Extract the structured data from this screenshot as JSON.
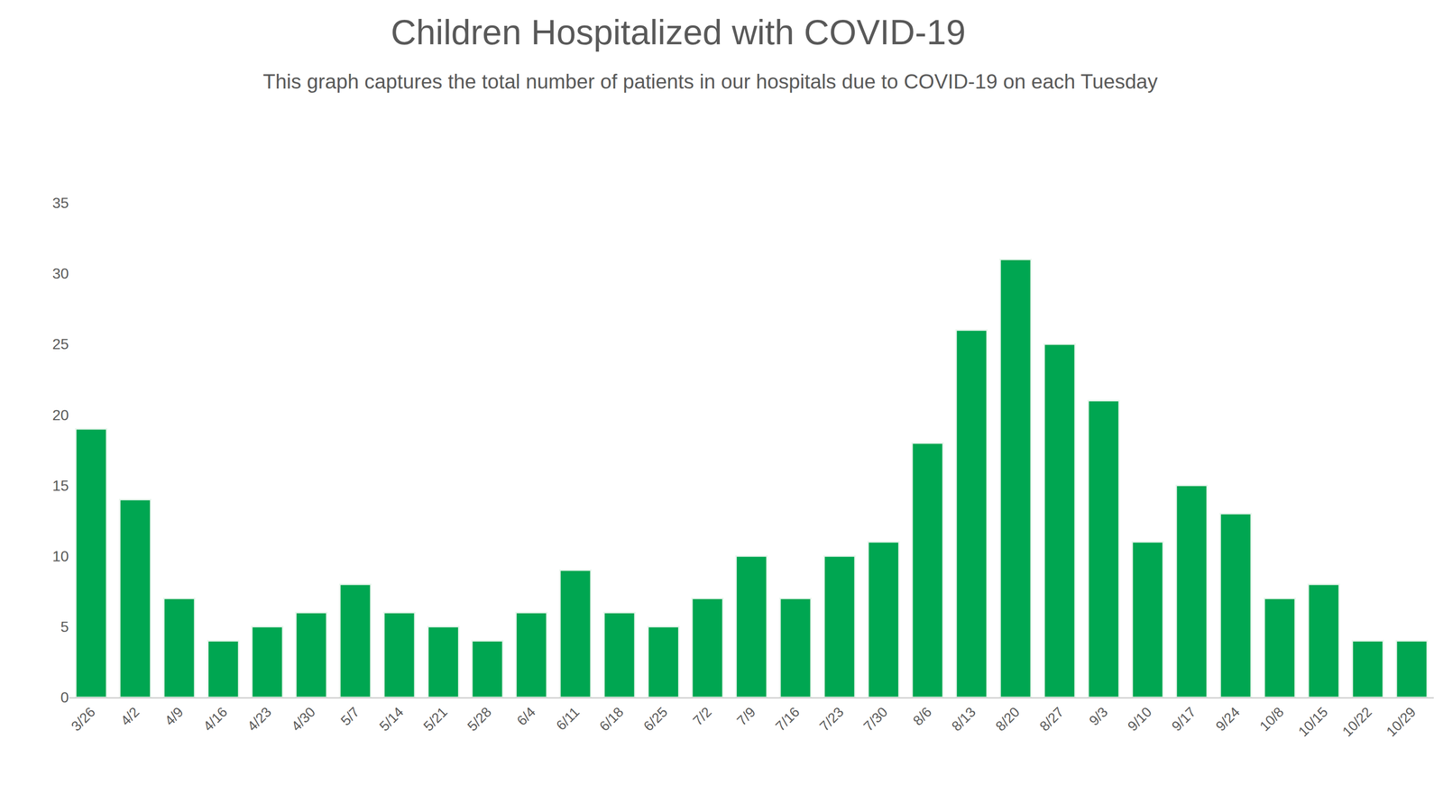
{
  "chart_data": {
    "type": "bar",
    "title": "Children Hospitalized with COVID-19",
    "subtitle": "This graph captures the total number of patients in our hospitals due to COVID-19 on each Tuesday",
    "categories": [
      "3/26",
      "4/2",
      "4/9",
      "4/16",
      "4/23",
      "4/30",
      "5/7",
      "5/14",
      "5/21",
      "5/28",
      "6/4",
      "6/11",
      "6/18",
      "6/25",
      "7/2",
      "7/9",
      "7/16",
      "7/23",
      "7/30",
      "8/6",
      "8/13",
      "8/20",
      "8/27",
      "9/3",
      "9/10",
      "9/17",
      "9/24",
      "10/8",
      "10/15",
      "10/22",
      "10/29"
    ],
    "values": [
      19,
      14,
      7,
      4,
      5,
      6,
      8,
      6,
      5,
      4,
      6,
      9,
      6,
      5,
      7,
      10,
      7,
      10,
      11,
      18,
      26,
      31,
      25,
      21,
      11,
      15,
      13,
      7,
      8,
      4,
      4
    ],
    "color": "#00a651",
    "ylim": [
      0,
      35
    ],
    "yticks": [
      0,
      5,
      10,
      15,
      20,
      25,
      30,
      35
    ],
    "grid": false
  }
}
